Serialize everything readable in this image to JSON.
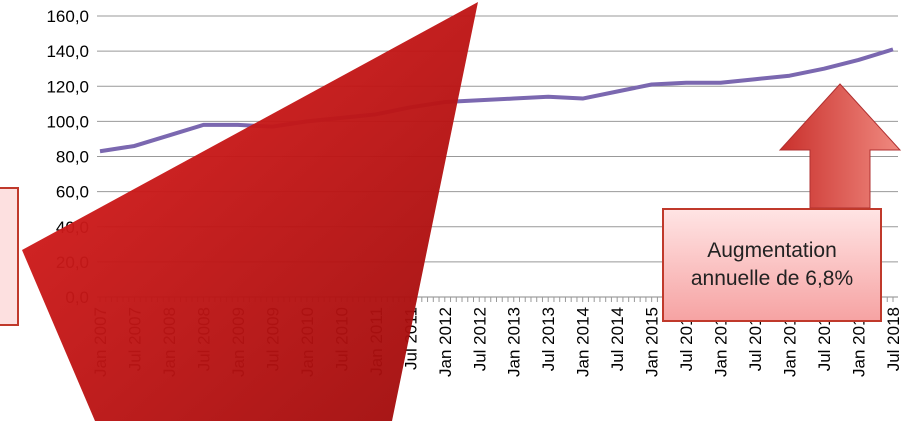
{
  "chart_data": {
    "type": "line",
    "categories": [
      "Jan 2007",
      "Jul 2007",
      "Jan 2008",
      "Jul 2008",
      "Jan 2009",
      "Jul 2009",
      "Jan 2010",
      "Jul 2010",
      "Jan 2011",
      "Jul 2011",
      "Jan 2012",
      "Jul 2012",
      "Jan 2013",
      "Jul 2013",
      "Jan 2014",
      "Jul 2014",
      "Jan 2015",
      "Jul 2015",
      "Jan 2016",
      "Jul 2016",
      "Jan 2017",
      "Jul 2017",
      "Jan 2018",
      "Jul 2018"
    ],
    "values": [
      83,
      86,
      92,
      98,
      98,
      97,
      100,
      102,
      104,
      108,
      111,
      112,
      113,
      114,
      113,
      117,
      121,
      122,
      122,
      124,
      126,
      130,
      135,
      141
    ],
    "color": "#7b68b0",
    "ylim": [
      0,
      160
    ],
    "yticks": [
      {
        "value": 0,
        "label": "0,0"
      },
      {
        "value": 20,
        "label": "20,0"
      },
      {
        "value": 40,
        "label": "40,0"
      },
      {
        "value": 60,
        "label": "60,0"
      },
      {
        "value": 80,
        "label": "80,0"
      },
      {
        "value": 100,
        "label": "100,0"
      },
      {
        "value": 120,
        "label": "120,0"
      },
      {
        "value": 140,
        "label": "140,0"
      },
      {
        "value": 160,
        "label": "160,0"
      }
    ],
    "grid": true,
    "annotation": "Augmentation annuelle de 6,8%"
  }
}
